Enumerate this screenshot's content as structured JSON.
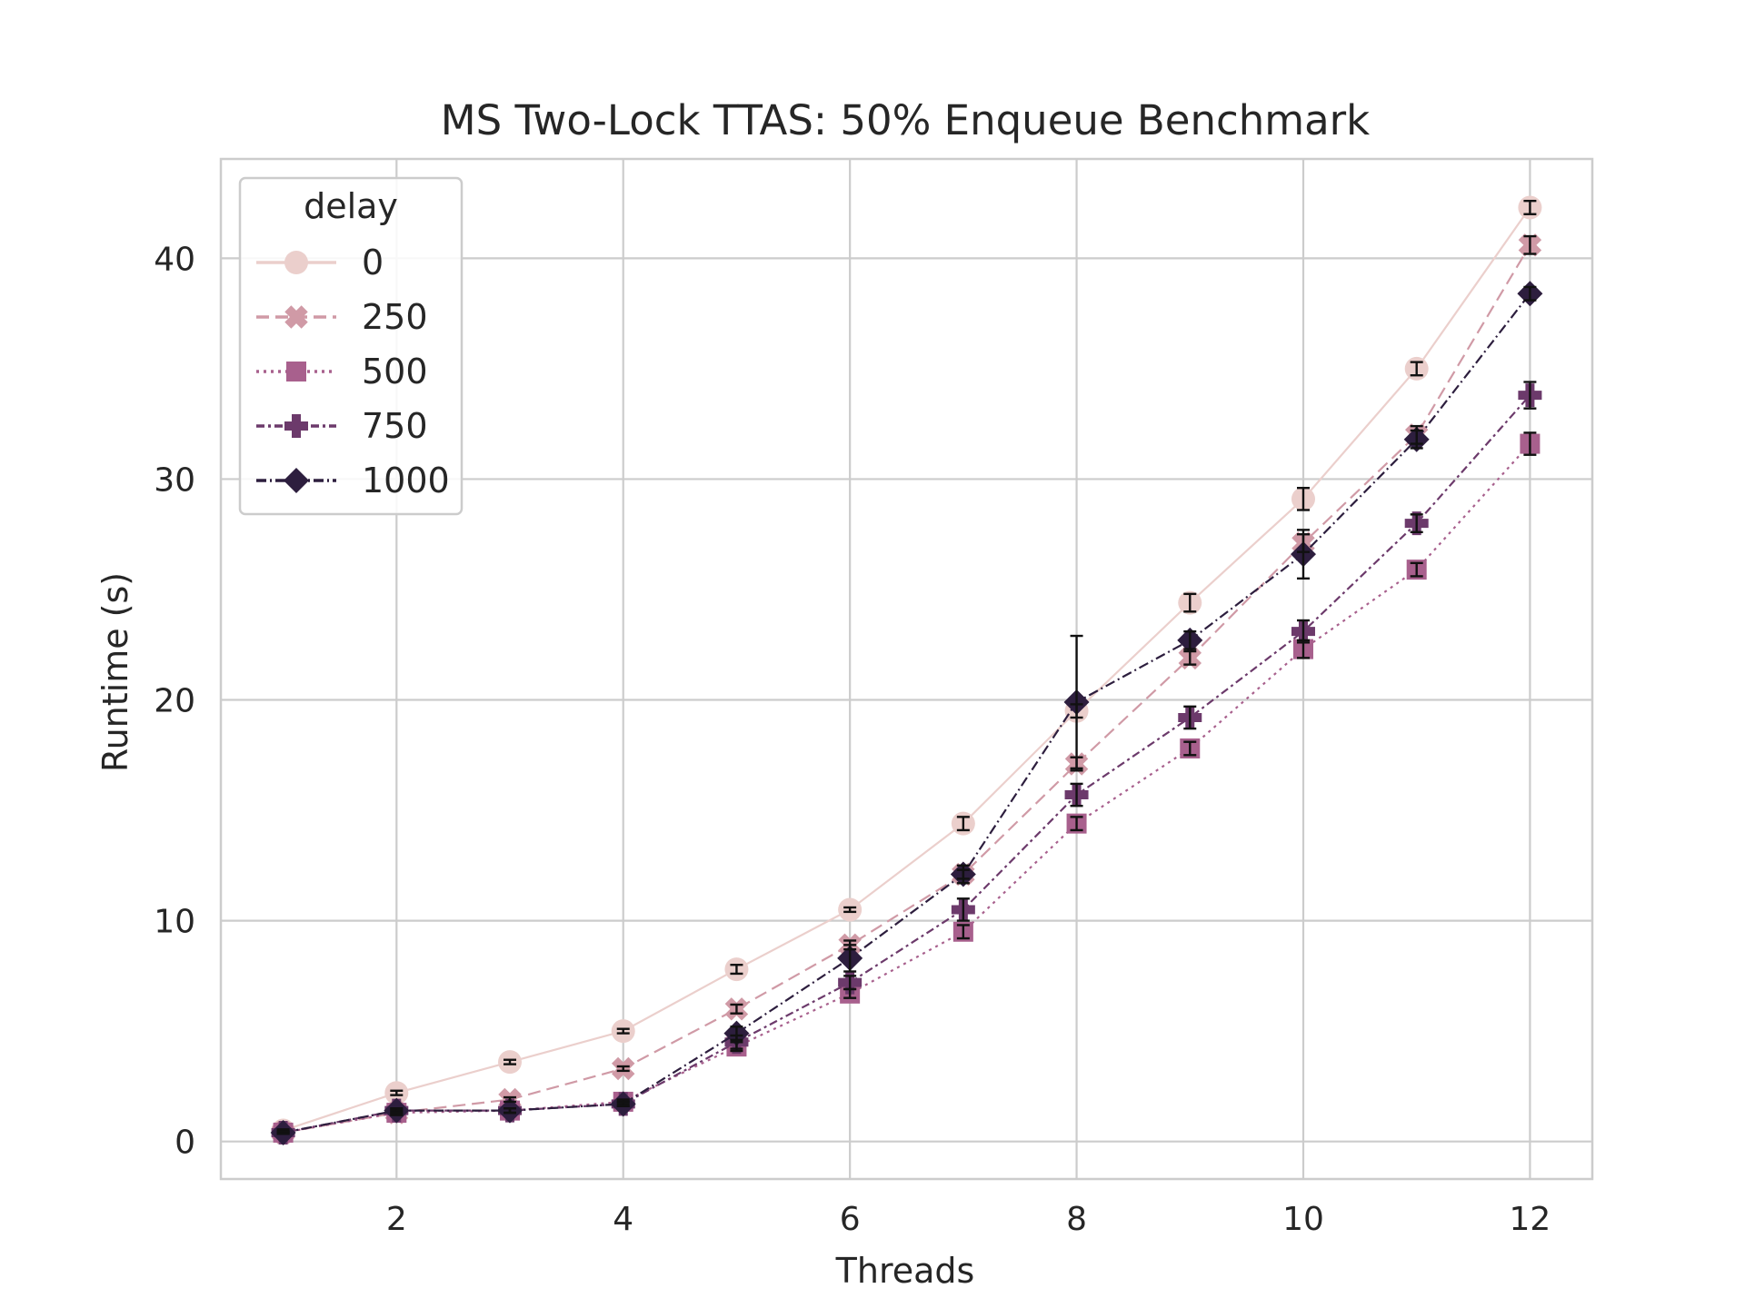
{
  "chart_data": {
    "type": "line",
    "title": "MS Two-Lock TTAS: 50% Enqueue Benchmark",
    "xlabel": "Threads",
    "ylabel": "Runtime (s)",
    "xlim": [
      0.45,
      12.55
    ],
    "ylim": [
      -1.7,
      44.5
    ],
    "xticks": [
      2,
      4,
      6,
      8,
      10,
      12
    ],
    "yticks": [
      0,
      10,
      20,
      30,
      40
    ],
    "grid": true,
    "legend": {
      "title": "delay",
      "placement": "top-left"
    },
    "x": [
      1,
      2,
      3,
      4,
      5,
      6,
      7,
      8,
      9,
      10,
      11,
      12
    ],
    "series": [
      {
        "name": "0",
        "color": "#ebcfcc",
        "dash": "",
        "marker": "circle",
        "values": [
          0.5,
          2.2,
          3.6,
          5.0,
          7.8,
          10.5,
          14.4,
          19.5,
          24.4,
          29.1,
          35.0,
          42.3
        ],
        "err": [
          0.05,
          0.1,
          0.1,
          0.1,
          0.2,
          0.1,
          0.3,
          0.3,
          0.4,
          0.5,
          0.3,
          0.3
        ]
      },
      {
        "name": "250",
        "color": "#d09aa6",
        "dash": "14,7",
        "marker": "x",
        "values": [
          0.4,
          1.3,
          1.9,
          3.3,
          6.0,
          8.9,
          12.1,
          17.1,
          21.9,
          27.1,
          32.0,
          40.6
        ],
        "err": [
          0.05,
          0.1,
          0.1,
          0.1,
          0.2,
          0.2,
          0.2,
          0.3,
          0.3,
          0.4,
          0.4,
          0.4
        ]
      },
      {
        "name": "500",
        "color": "#a8608d",
        "dash": "3,5",
        "marker": "square",
        "values": [
          0.4,
          1.3,
          1.4,
          1.8,
          4.3,
          6.7,
          9.5,
          14.4,
          17.8,
          22.3,
          25.9,
          31.6
        ],
        "err": [
          0.05,
          0.1,
          0.1,
          0.1,
          0.2,
          0.2,
          0.3,
          0.3,
          0.3,
          0.4,
          0.3,
          0.5
        ]
      },
      {
        "name": "750",
        "color": "#6c3a6b",
        "dash": "9,4,3,4",
        "marker": "plus",
        "values": [
          0.4,
          1.4,
          1.4,
          1.7,
          4.5,
          7.2,
          10.5,
          15.7,
          19.2,
          23.1,
          28.0,
          33.8
        ],
        "err": [
          0.05,
          0.1,
          0.1,
          0.1,
          0.3,
          0.3,
          0.5,
          0.5,
          0.5,
          0.5,
          0.4,
          0.6
        ]
      },
      {
        "name": "1000",
        "color": "#2d1e3e",
        "dash": "11,4,2,4",
        "marker": "diamond",
        "values": [
          0.4,
          1.4,
          1.4,
          1.7,
          4.9,
          8.3,
          12.1,
          19.9,
          22.7,
          26.6,
          31.8,
          38.4
        ],
        "err": [
          0.05,
          0.1,
          0.1,
          0.1,
          0.3,
          0.6,
          0.4,
          3.0,
          0.4,
          1.1,
          0.4,
          0.3
        ]
      }
    ]
  }
}
